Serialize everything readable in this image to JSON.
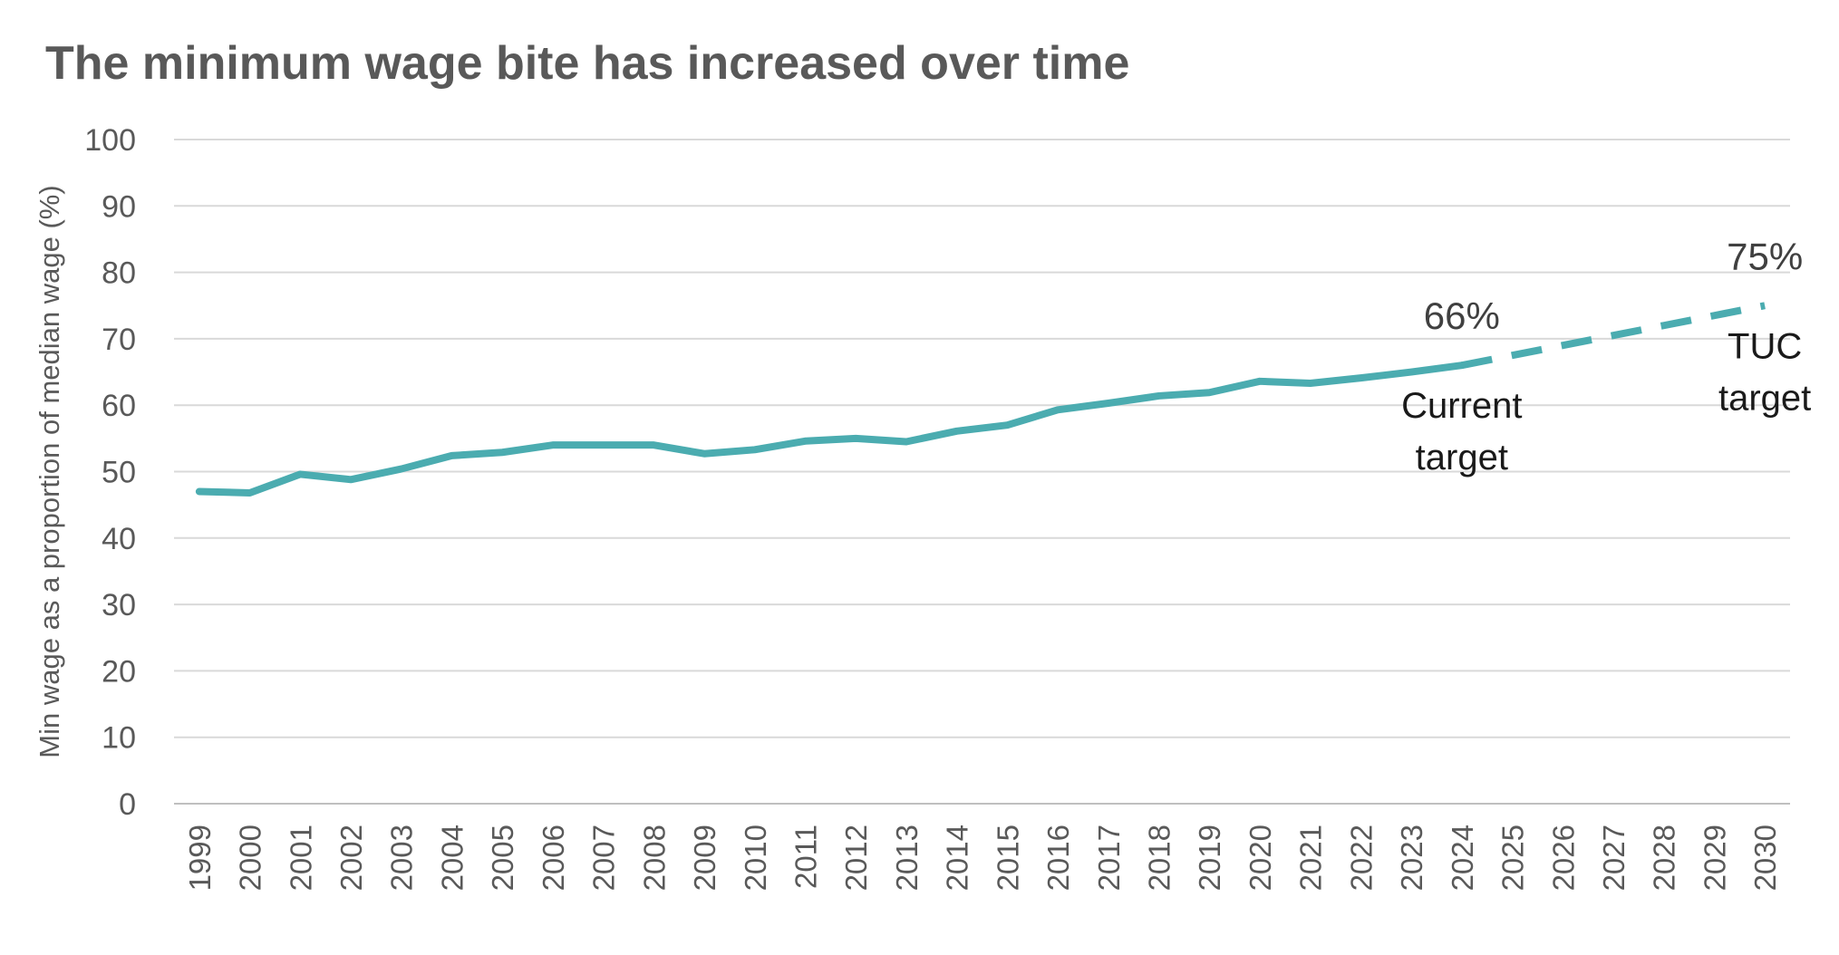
{
  "chart_data": {
    "type": "line",
    "title": "The minimum wage bite has increased over time",
    "ylabel": "Min wage as a proportion of median wage (%)",
    "xlabel": "",
    "ylim": [
      0,
      100
    ],
    "yticks": [
      0,
      10,
      20,
      30,
      40,
      50,
      60,
      70,
      80,
      90,
      100
    ],
    "categories": [
      "1999",
      "2000",
      "2001",
      "2002",
      "2003",
      "2004",
      "2005",
      "2006",
      "2007",
      "2008",
      "2009",
      "2010",
      "2011",
      "2012",
      "2013",
      "2014",
      "2015",
      "2016",
      "2017",
      "2018",
      "2019",
      "2020",
      "2021",
      "2022",
      "2023",
      "2024",
      "2025",
      "2026",
      "2027",
      "2028",
      "2029",
      "2030"
    ],
    "grid": true,
    "legend": "none",
    "series": [
      {
        "style": "solid",
        "color": "#4bacb0",
        "x": [
          "1999",
          "2000",
          "2001",
          "2002",
          "2003",
          "2004",
          "2005",
          "2006",
          "2007",
          "2008",
          "2009",
          "2010",
          "2011",
          "2012",
          "2013",
          "2014",
          "2015",
          "2016",
          "2017",
          "2018",
          "2019",
          "2020",
          "2021",
          "2022",
          "2023",
          "2024"
        ],
        "values": [
          47.0,
          46.8,
          49.6,
          48.8,
          50.4,
          52.4,
          52.9,
          54.0,
          54.0,
          54.0,
          52.7,
          53.3,
          54.6,
          55.0,
          54.5,
          56.1,
          57.0,
          59.3,
          60.3,
          61.4,
          61.9,
          63.6,
          63.3,
          64.1,
          65.0,
          66.0
        ]
      },
      {
        "style": "dashed",
        "color": "#4bacb0",
        "x": [
          "2024",
          "2025",
          "2026",
          "2027",
          "2028",
          "2029",
          "2030"
        ],
        "values": [
          66.0,
          67.5,
          69.0,
          70.5,
          72.0,
          73.5,
          75.0
        ]
      }
    ],
    "annotations": [
      {
        "value": "66%",
        "label_lines": [
          "Current",
          "target"
        ],
        "x": "2024",
        "y": 66
      },
      {
        "value": "75%",
        "label_lines": [
          "TUC",
          "target"
        ],
        "x": "2030",
        "y": 75
      }
    ]
  }
}
